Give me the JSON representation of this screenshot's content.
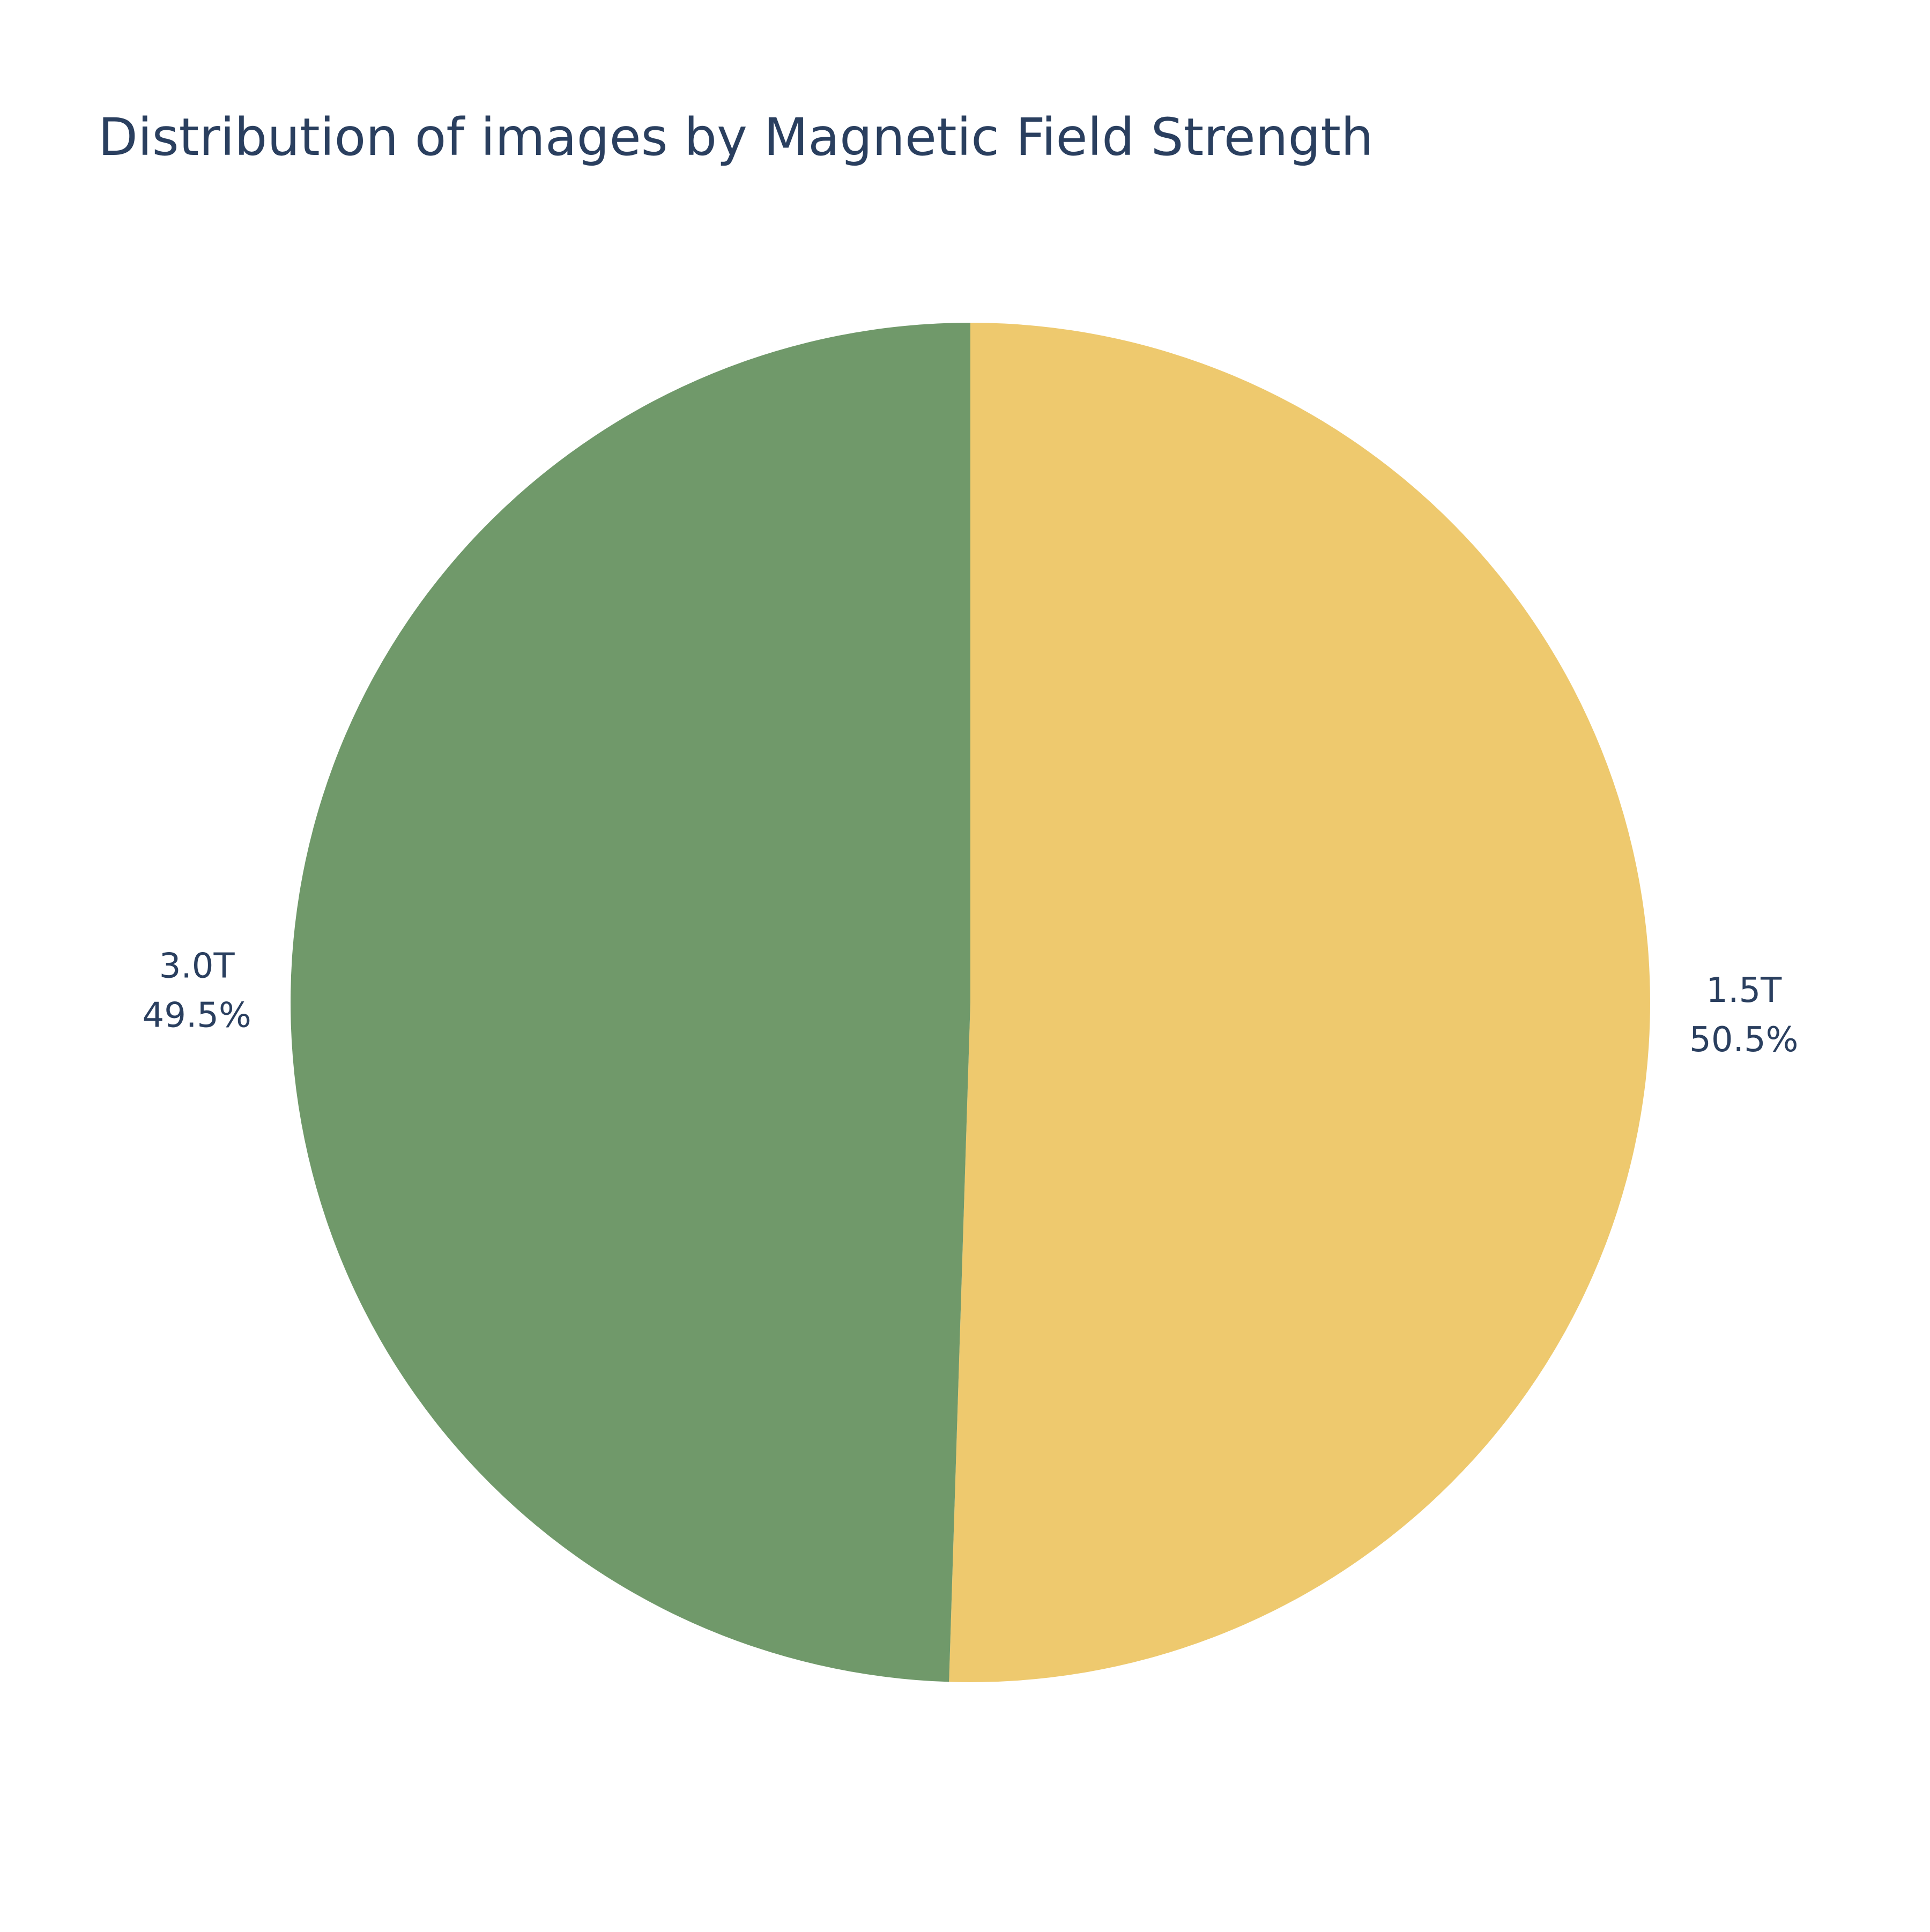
{
  "chart_data": {
    "type": "pie",
    "title": "Distribution of images by Magnetic Field Strength",
    "labels": [
      "1.5T",
      "3.0T"
    ],
    "values": [
      50.5,
      49.5
    ],
    "percent_labels": [
      "50.5%",
      "49.5%"
    ],
    "colors": [
      "#eec96e",
      "#70996a"
    ],
    "start_angle_deg": 90,
    "direction": "clockwise",
    "legend": "none",
    "text_color": "#2a3f5f"
  }
}
